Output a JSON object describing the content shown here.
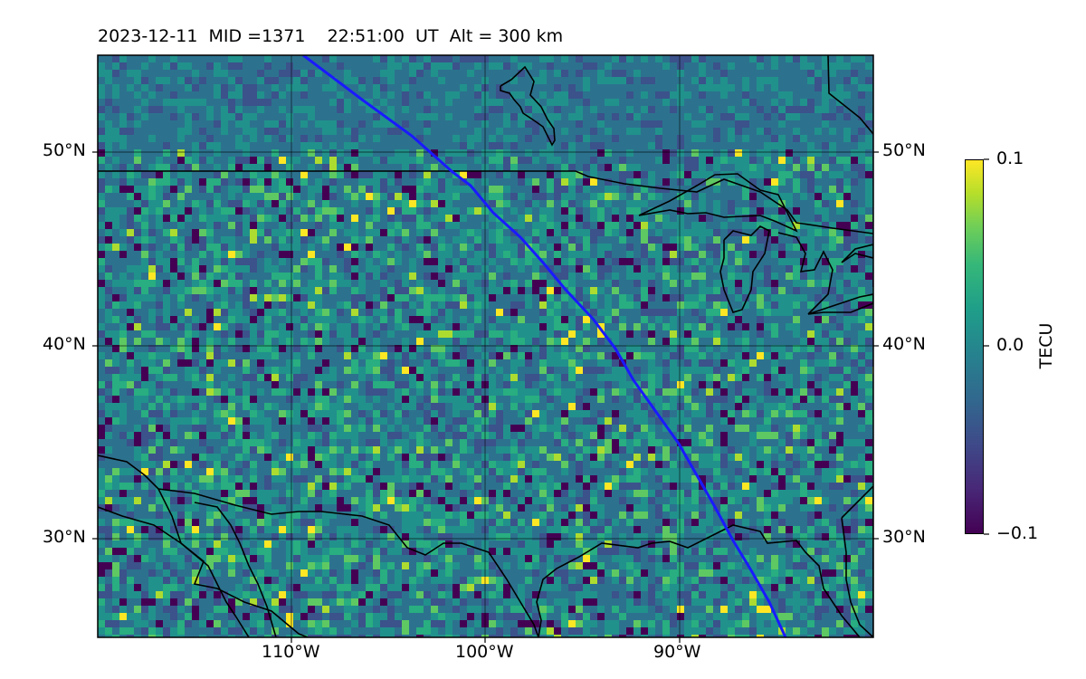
{
  "header": {
    "title": "2023-12-11  MID =1371    22:51:00  UT  Alt = 300 km"
  },
  "map": {
    "extent": {
      "lon_min": -120,
      "lon_max": -80,
      "lat_min": 25,
      "lat_max": 55
    },
    "lat_ticks": [
      "50°N",
      "40°N",
      "30°N"
    ],
    "lon_ticks": [
      "110°W",
      "100°W",
      "90°W"
    ],
    "gridlines": true,
    "track_color": "#1a1aff",
    "coastline_color": "#000000"
  },
  "colorbar": {
    "label": "TECU",
    "max_label": "0.1",
    "mid_label": "0.0",
    "min_label": "−0.1",
    "colormap": "viridis"
  }
}
